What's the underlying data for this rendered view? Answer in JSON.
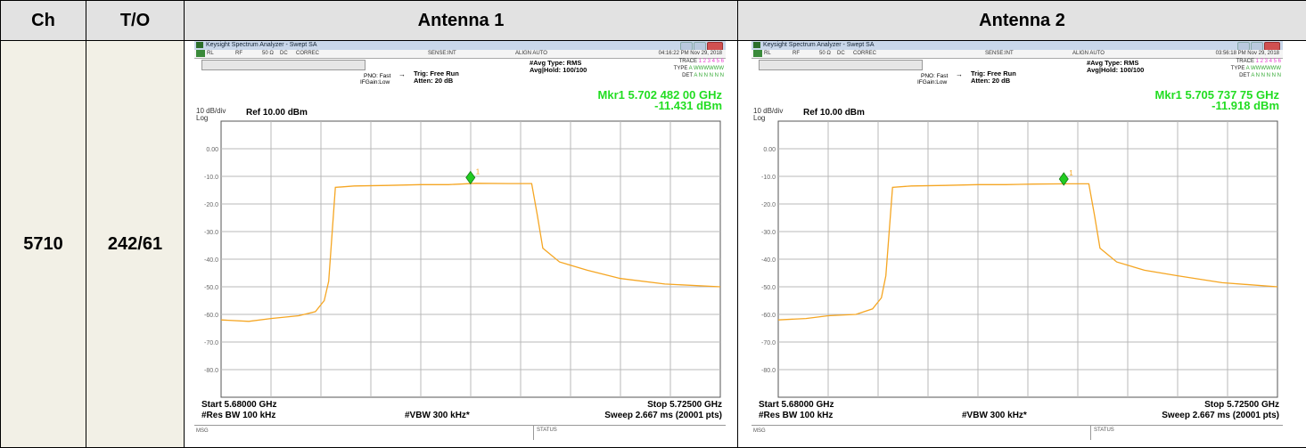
{
  "table": {
    "headers": [
      "Ch",
      "T/O",
      "Antenna 1",
      "Antenna 2"
    ],
    "channel": "5710",
    "to": "242/61"
  },
  "analyzers": [
    {
      "window_title": "Keysight Spectrum Analyzer - Swept SA",
      "status": {
        "rl": "RL",
        "rf": "RF",
        "ohm": "50 Ω",
        "dc": "DC",
        "correc": "CORREC",
        "sense": "SENSE:INT",
        "align": "ALIGN AUTO",
        "time": "04:16:22 PM Nov 29, 2018"
      },
      "pno": "PNO: Fast",
      "ifgain": "IFGain:Low",
      "trig": "Trig: Free Run",
      "atten": "Atten: 20 dB",
      "avg_type": "#Avg Type: RMS",
      "avg_hold": "Avg|Hold: 100/100",
      "trace_label": "TRACE",
      "type_label": "TYPE",
      "det_label": "DET",
      "trace_nums": "1 2 3 4 5 6",
      "trace_type": "A WWWWWW",
      "trace_det": "A N N N N N",
      "scale": "10 dB/div",
      "log": "Log",
      "ref": "Ref 10.00 dBm",
      "mkr_freq": "Mkr1 5.702 482 00 GHz",
      "mkr_level": "-11.431 dBm",
      "marker_label": "1",
      "start": "Start 5.68000 GHz",
      "stop": "Stop 5.72500 GHz",
      "rbw": "#Res BW 100 kHz",
      "vbw": "#VBW 300 kHz*",
      "sweep": "Sweep  2.667 ms (20001 pts)",
      "msg": "MSG",
      "statusbar": "STATUS"
    },
    {
      "window_title": "Keysight Spectrum Analyzer - Swept SA",
      "status": {
        "rl": "RL",
        "rf": "RF",
        "ohm": "50 Ω",
        "dc": "DC",
        "correc": "CORREC",
        "sense": "SENSE:INT",
        "align": "ALIGN AUTO",
        "time": "03:56:18 PM Nov 29, 2018"
      },
      "pno": "PNO: Fast",
      "ifgain": "IFGain:Low",
      "trig": "Trig: Free Run",
      "atten": "Atten: 20 dB",
      "avg_type": "#Avg Type: RMS",
      "avg_hold": "Avg|Hold: 100/100",
      "trace_label": "TRACE",
      "type_label": "TYPE",
      "det_label": "DET",
      "trace_nums": "1 2 3 4 5 6",
      "trace_type": "A WWWWWW",
      "trace_det": "A N N N N N",
      "scale": "10 dB/div",
      "log": "Log",
      "ref": "Ref 10.00 dBm",
      "mkr_freq": "Mkr1 5.705 737 75 GHz",
      "mkr_level": "-11.918 dBm",
      "marker_label": "1",
      "start": "Start 5.68000 GHz",
      "stop": "Stop 5.72500 GHz",
      "rbw": "#Res BW 100 kHz",
      "vbw": "#VBW 300 kHz*",
      "sweep": "Sweep  2.667 ms (20001 pts)",
      "msg": "MSG",
      "statusbar": "STATUS"
    }
  ],
  "chart_data": [
    {
      "type": "line",
      "xlim": [
        5.68,
        5.725
      ],
      "ylim": [
        -90,
        10
      ],
      "ytick_labels": [
        "0.00",
        "-10.0",
        "-20.0",
        "-30.0",
        "-40.0",
        "-50.0",
        "-60.0",
        "-70.0",
        "-80.0"
      ],
      "grid": true,
      "trace_color": "#f5a623",
      "marker_color": "#22cc22",
      "marker": {
        "x": 5.702482,
        "y": -11.431
      },
      "x": [
        5.68,
        5.6825,
        5.6845,
        5.687,
        5.6885,
        5.6893,
        5.6897,
        5.6903,
        5.692,
        5.695,
        5.698,
        5.7005,
        5.703,
        5.706,
        5.708,
        5.7085,
        5.709,
        5.7105,
        5.713,
        5.716,
        5.72,
        5.725
      ],
      "y": [
        -62,
        -62.5,
        -61.5,
        -60.5,
        -59,
        -55,
        -48,
        -14,
        -13.5,
        -13.3,
        -13,
        -13,
        -12.5,
        -12.6,
        -12.6,
        -24,
        -36,
        -41,
        -44,
        -47,
        -49,
        -50
      ]
    },
    {
      "type": "line",
      "xlim": [
        5.68,
        5.725
      ],
      "ylim": [
        -90,
        10
      ],
      "ytick_labels": [
        "0.00",
        "-10.0",
        "-20.0",
        "-30.0",
        "-40.0",
        "-50.0",
        "-60.0",
        "-70.0",
        "-80.0"
      ],
      "grid": true,
      "trace_color": "#f5a623",
      "marker_color": "#22cc22",
      "marker": {
        "x": 5.70573775,
        "y": -11.918
      },
      "x": [
        5.68,
        5.6825,
        5.6845,
        5.687,
        5.6885,
        5.6893,
        5.6897,
        5.6903,
        5.692,
        5.695,
        5.698,
        5.7005,
        5.703,
        5.706,
        5.708,
        5.7085,
        5.709,
        5.7105,
        5.713,
        5.716,
        5.72,
        5.725
      ],
      "y": [
        -62,
        -61.5,
        -60.5,
        -60,
        -58,
        -54,
        -46,
        -14,
        -13.5,
        -13.3,
        -13,
        -13,
        -12.8,
        -12.7,
        -12.7,
        -24,
        -36,
        -41,
        -44,
        -46,
        -48.5,
        -50
      ]
    }
  ]
}
